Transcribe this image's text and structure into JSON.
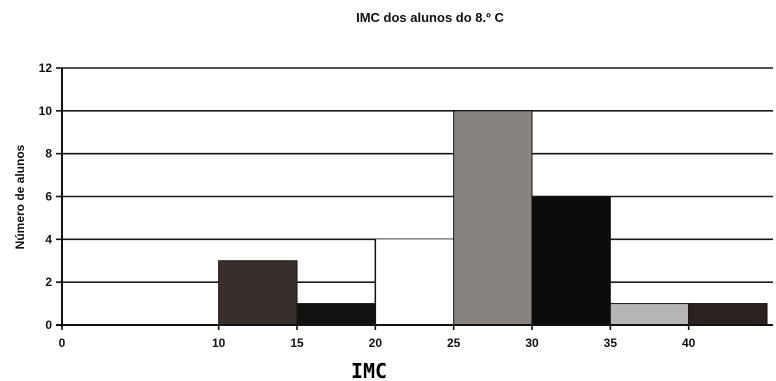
{
  "chart_data": {
    "type": "bar",
    "title": "IMC dos alunos do 8.º C",
    "xlabel": "IMC",
    "ylabel": "Número de alunos",
    "xlim": [
      0,
      45
    ],
    "ylim": [
      0,
      12
    ],
    "x_ticks": [
      0,
      10,
      15,
      20,
      25,
      30,
      35,
      40
    ],
    "y_ticks": [
      0,
      2,
      4,
      6,
      8,
      10,
      12
    ],
    "grid": true,
    "bars": [
      {
        "x_start": 10,
        "x_end": 15,
        "value": 3,
        "color": "#3a302b"
      },
      {
        "x_start": 15,
        "x_end": 20,
        "value": 1,
        "color": "#141111"
      },
      {
        "x_start": 20,
        "x_end": 25,
        "value": 4,
        "color": "#ffffff"
      },
      {
        "x_start": 25,
        "x_end": 30,
        "value": 10,
        "color": "#8a8480"
      },
      {
        "x_start": 30,
        "x_end": 35,
        "value": 6,
        "color": "#0c0c0c"
      },
      {
        "x_start": 35,
        "x_end": 40,
        "value": 1,
        "color": "#b8b6b4"
      },
      {
        "x_start": 40,
        "x_end": 45,
        "value": 1,
        "color": "#2a2321"
      }
    ]
  }
}
